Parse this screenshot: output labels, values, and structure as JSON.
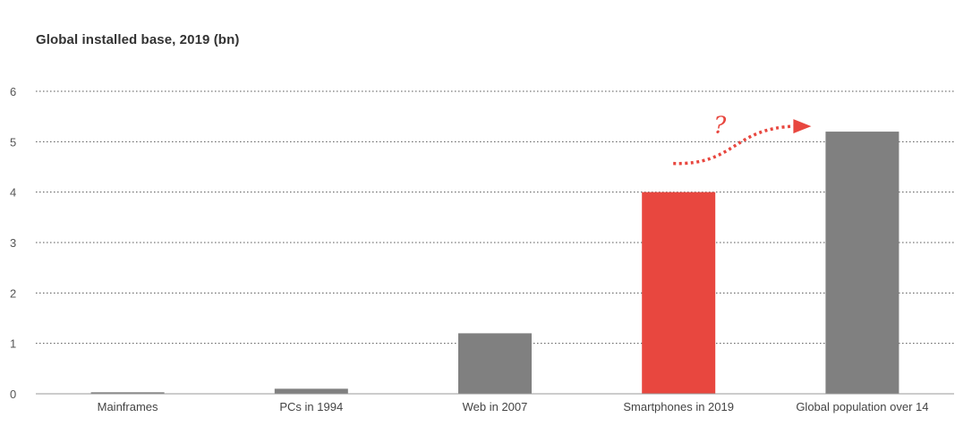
{
  "chart_data": {
    "type": "bar",
    "title": "Global installed base, 2019 (bn)",
    "xlabel": "",
    "ylabel": "",
    "categories": [
      "Mainframes",
      "PCs in 1994",
      "Web in 2007",
      "Smartphones in 2019",
      "Global population over 14"
    ],
    "values": [
      0.03,
      0.1,
      1.2,
      4.0,
      5.2
    ],
    "ylim": [
      0,
      6
    ],
    "yticks": [
      0,
      1,
      2,
      3,
      4,
      5,
      6
    ],
    "grid": true,
    "legend": "none",
    "colors": {
      "default_bar": "#808080",
      "highlight_bar": "#e8473f",
      "grid": "#555555",
      "axis": "#999999"
    },
    "highlight_index": 3,
    "annotation": {
      "text": "?",
      "arrow_from": "Smartphones in 2019",
      "arrow_to": "Global population over 14",
      "color": "#e8473f"
    }
  }
}
